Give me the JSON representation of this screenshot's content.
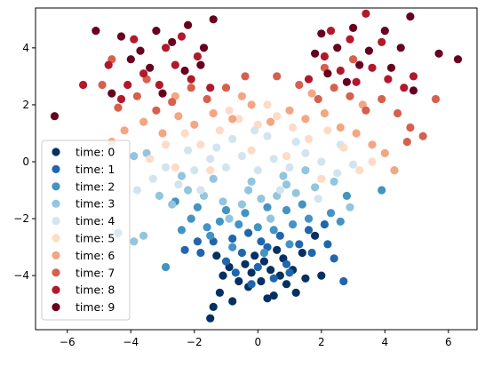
{
  "chart_data": {
    "type": "scatter",
    "title": "",
    "xlabel": "",
    "ylabel": "",
    "xlim": [
      -7.0,
      6.9
    ],
    "ylim": [
      -5.9,
      5.4
    ],
    "xticks": [
      -6,
      -4,
      -2,
      0,
      2,
      4,
      6
    ],
    "yticks": [
      -4,
      -2,
      0,
      2,
      4
    ],
    "grid": false,
    "legend_position": "lower-left",
    "series": [
      {
        "name": "time: 0",
        "color": "#053061",
        "points": [
          [
            -1.5,
            -5.5
          ],
          [
            -1.4,
            -5.1
          ],
          [
            -1.2,
            -4.6
          ],
          [
            -0.8,
            -4.9
          ],
          [
            0.3,
            -4.8
          ],
          [
            1.2,
            -4.6
          ],
          [
            0.5,
            -4.7
          ],
          [
            -0.3,
            -4.4
          ],
          [
            0.9,
            -4.3
          ],
          [
            -0.6,
            -4.2
          ],
          [
            0.1,
            -4.2
          ],
          [
            1.5,
            -4.1
          ],
          [
            -1.1,
            -4.0
          ],
          [
            0.7,
            -4.0
          ],
          [
            -0.2,
            -3.9
          ],
          [
            0.4,
            -3.8
          ],
          [
            1.1,
            -3.8
          ],
          [
            -0.9,
            -3.7
          ],
          [
            -0.4,
            -3.6
          ],
          [
            0.2,
            -3.5
          ],
          [
            0.8,
            -3.4
          ],
          [
            -1.3,
            -3.3
          ],
          [
            1.4,
            -3.2
          ],
          [
            2.0,
            -4.0
          ],
          [
            -0.1,
            -3.3
          ],
          [
            0.6,
            -3.1
          ],
          [
            1.8,
            -2.6
          ]
        ]
      },
      {
        "name": "time: 1",
        "color": "#2166ac",
        "points": [
          [
            2.7,
            -4.2
          ],
          [
            2.4,
            -3.4
          ],
          [
            -1.8,
            -3.2
          ],
          [
            -2.3,
            -3.1
          ],
          [
            -1.9,
            -2.8
          ],
          [
            1.7,
            -3.2
          ],
          [
            2.2,
            -2.9
          ],
          [
            -0.7,
            -3.9
          ],
          [
            -0.2,
            -4.3
          ],
          [
            0.5,
            -4.1
          ],
          [
            1.0,
            -3.9
          ],
          [
            -1.0,
            -3.5
          ],
          [
            0.0,
            -3.7
          ],
          [
            0.9,
            -3.6
          ],
          [
            -0.5,
            -3.2
          ],
          [
            0.3,
            -3.0
          ],
          [
            1.3,
            -2.9
          ],
          [
            -1.4,
            -2.8
          ],
          [
            -0.8,
            -2.7
          ],
          [
            0.7,
            -2.6
          ],
          [
            1.6,
            -2.4
          ],
          [
            -0.3,
            -2.5
          ],
          [
            0.1,
            -2.8
          ],
          [
            2.1,
            -2.2
          ]
        ]
      },
      {
        "name": "time: 2",
        "color": "#4393c3",
        "points": [
          [
            -4.4,
            -2.5
          ],
          [
            -2.9,
            -3.7
          ],
          [
            3.9,
            -1.0
          ],
          [
            2.6,
            -2.1
          ],
          [
            -2.4,
            -2.4
          ],
          [
            -1.6,
            -2.3
          ],
          [
            -2.1,
            -2.0
          ],
          [
            -1.2,
            -2.1
          ],
          [
            -0.6,
            -2.2
          ],
          [
            0.0,
            -2.3
          ],
          [
            0.5,
            -2.4
          ],
          [
            1.1,
            -2.2
          ],
          [
            1.6,
            -2.0
          ],
          [
            2.3,
            -1.8
          ],
          [
            -1.9,
            -1.6
          ],
          [
            -1.0,
            -1.7
          ],
          [
            -0.4,
            -1.8
          ],
          [
            0.3,
            -1.6
          ],
          [
            0.9,
            -1.7
          ],
          [
            1.4,
            -1.5
          ],
          [
            -0.8,
            -3.0
          ],
          [
            0.2,
            -3.2
          ],
          [
            1.0,
            -2.9
          ],
          [
            -1.5,
            -2.6
          ],
          [
            -2.6,
            -1.4
          ],
          [
            2.8,
            -1.2
          ]
        ]
      },
      {
        "name": "time: 3",
        "color": "#92c5de",
        "points": [
          [
            -3.9,
            -2.8
          ],
          [
            -3.6,
            -2.6
          ],
          [
            -3.9,
            0.2
          ],
          [
            -3.5,
            0.3
          ],
          [
            -3.1,
            -1.2
          ],
          [
            -2.7,
            -1.5
          ],
          [
            -2.2,
            -1.0
          ],
          [
            -1.7,
            -1.2
          ],
          [
            -1.1,
            -1.4
          ],
          [
            -0.5,
            -1.5
          ],
          [
            0.1,
            -1.3
          ],
          [
            0.6,
            -1.2
          ],
          [
            1.2,
            -1.1
          ],
          [
            1.8,
            -0.9
          ],
          [
            2.4,
            -0.7
          ],
          [
            2.9,
            -1.6
          ],
          [
            -2.4,
            -0.5
          ],
          [
            -1.4,
            -0.6
          ],
          [
            -0.2,
            -0.7
          ],
          [
            0.8,
            -0.5
          ],
          [
            1.5,
            -0.3
          ],
          [
            -0.9,
            -2.0
          ],
          [
            0.4,
            -2.0
          ],
          [
            -0.3,
            -1.0
          ],
          [
            0.9,
            -0.8
          ]
        ]
      },
      {
        "name": "time: 4",
        "color": "#d1e5f0",
        "points": [
          [
            -3.8,
            -1.0
          ],
          [
            -3.3,
            -0.6
          ],
          [
            -2.9,
            -0.2
          ],
          [
            -2.5,
            -0.8
          ],
          [
            -2.0,
            -0.3
          ],
          [
            -1.5,
            0.1
          ],
          [
            -1.0,
            -0.2
          ],
          [
            -0.5,
            0.2
          ],
          [
            0.0,
            -0.3
          ],
          [
            0.5,
            0.1
          ],
          [
            1.0,
            -0.2
          ],
          [
            1.5,
            0.3
          ],
          [
            2.0,
            0.0
          ],
          [
            2.5,
            -0.4
          ],
          [
            3.0,
            -0.1
          ],
          [
            -0.8,
            0.8
          ],
          [
            0.3,
            0.9
          ],
          [
            1.2,
            0.7
          ],
          [
            -1.8,
            -1.0
          ],
          [
            0.7,
            -1.0
          ],
          [
            1.9,
            -1.3
          ],
          [
            -0.1,
            1.1
          ],
          [
            -1.3,
            0.5
          ],
          [
            2.6,
            0.6
          ],
          [
            -2.2,
            0.4
          ]
        ]
      },
      {
        "name": "time: 5",
        "color": "#fddbc7",
        "points": [
          [
            -3.4,
            0.1
          ],
          [
            -2.9,
            0.6
          ],
          [
            -2.3,
            1.0
          ],
          [
            -1.8,
            0.6
          ],
          [
            -1.2,
            1.1
          ],
          [
            -0.6,
            1.5
          ],
          [
            0.0,
            1.3
          ],
          [
            0.6,
            1.6
          ],
          [
            1.1,
            1.2
          ],
          [
            1.6,
            0.8
          ],
          [
            2.2,
            1.1
          ],
          [
            2.7,
            0.5
          ],
          [
            3.2,
            -0.3
          ],
          [
            3.6,
            0.0
          ],
          [
            -0.2,
            0.4
          ],
          [
            0.9,
            0.2
          ],
          [
            -1.5,
            -0.3
          ],
          [
            2.0,
            -0.6
          ],
          [
            -0.9,
            1.8
          ],
          [
            0.3,
            2.0
          ],
          [
            -2.6,
            -0.2
          ]
        ]
      },
      {
        "name": "time: 6",
        "color": "#f4a582",
        "points": [
          [
            -4.6,
            0.7
          ],
          [
            -4.2,
            1.1
          ],
          [
            -3.6,
            1.4
          ],
          [
            -3.0,
            1.0
          ],
          [
            -2.5,
            1.6
          ],
          [
            -2.0,
            1.3
          ],
          [
            -1.4,
            1.7
          ],
          [
            -0.8,
            1.5
          ],
          [
            -0.2,
            2.0
          ],
          [
            0.4,
            1.4
          ],
          [
            1.0,
            1.8
          ],
          [
            1.5,
            1.5
          ],
          [
            2.1,
            1.7
          ],
          [
            2.6,
            1.2
          ],
          [
            3.1,
            1.0
          ],
          [
            3.6,
            0.6
          ],
          [
            4.0,
            0.3
          ],
          [
            4.3,
            -0.3
          ],
          [
            -2.6,
            2.3
          ],
          [
            1.7,
            2.4
          ],
          [
            -0.5,
            2.3
          ],
          [
            3.3,
            2.0
          ]
        ]
      },
      {
        "name": "time: 7",
        "color": "#d6604d",
        "points": [
          [
            -4.9,
            2.7
          ],
          [
            -4.4,
            1.9
          ],
          [
            -3.8,
            2.3
          ],
          [
            -3.2,
            1.8
          ],
          [
            -2.7,
            2.1
          ],
          [
            -2.1,
            2.6
          ],
          [
            -1.6,
            2.2
          ],
          [
            -1.0,
            2.6
          ],
          [
            1.3,
            2.7
          ],
          [
            1.9,
            2.2
          ],
          [
            2.4,
            2.6
          ],
          [
            2.9,
            2.3
          ],
          [
            3.4,
            1.8
          ],
          [
            3.9,
            2.2
          ],
          [
            4.4,
            1.7
          ],
          [
            4.8,
            1.2
          ],
          [
            5.2,
            0.9
          ],
          [
            5.6,
            2.2
          ],
          [
            -4.6,
            3.6
          ],
          [
            -3.5,
            2.9
          ],
          [
            2.1,
            3.3
          ],
          [
            3.0,
            3.6
          ],
          [
            0.6,
            3.0
          ],
          [
            -0.4,
            3.0
          ],
          [
            4.7,
            0.7
          ]
        ]
      },
      {
        "name": "time: 8",
        "color": "#b2182b",
        "points": [
          [
            -5.5,
            2.7
          ],
          [
            -4.7,
            3.4
          ],
          [
            -4.1,
            2.7
          ],
          [
            -3.6,
            3.1
          ],
          [
            -3.1,
            2.7
          ],
          [
            -2.6,
            3.4
          ],
          [
            -2.1,
            2.9
          ],
          [
            -1.5,
            2.6
          ],
          [
            -3.9,
            4.3
          ],
          [
            -2.9,
            4.0
          ],
          [
            -1.9,
            3.7
          ],
          [
            -2.4,
            4.4
          ],
          [
            1.6,
            2.9
          ],
          [
            2.1,
            3.7
          ],
          [
            2.6,
            3.2
          ],
          [
            3.1,
            2.8
          ],
          [
            3.6,
            3.3
          ],
          [
            4.1,
            2.9
          ],
          [
            4.6,
            2.6
          ],
          [
            2.9,
            4.3
          ],
          [
            3.9,
            4.2
          ],
          [
            2.3,
            4.6
          ],
          [
            3.4,
            5.2
          ],
          [
            -4.3,
            2.2
          ],
          [
            4.9,
            3.0
          ]
        ]
      },
      {
        "name": "time: 9",
        "color": "#67001f",
        "points": [
          [
            -6.4,
            1.6
          ],
          [
            -5.1,
            4.6
          ],
          [
            -4.3,
            4.4
          ],
          [
            -3.7,
            3.9
          ],
          [
            -3.2,
            4.6
          ],
          [
            -2.7,
            4.2
          ],
          [
            -2.2,
            4.8
          ],
          [
            -1.7,
            4.0
          ],
          [
            -1.4,
            5.0
          ],
          [
            -4.6,
            2.4
          ],
          [
            -3.4,
            3.3
          ],
          [
            -2.3,
            3.2
          ],
          [
            -1.8,
            3.4
          ],
          [
            -4.0,
            3.6
          ],
          [
            2.0,
            4.5
          ],
          [
            2.5,
            4.0
          ],
          [
            3.0,
            4.7
          ],
          [
            3.5,
            3.9
          ],
          [
            4.0,
            4.6
          ],
          [
            4.5,
            4.0
          ],
          [
            4.8,
            5.1
          ],
          [
            5.7,
            3.8
          ],
          [
            6.3,
            3.6
          ],
          [
            2.2,
            3.1
          ],
          [
            3.2,
            3.4
          ],
          [
            4.2,
            3.3
          ],
          [
            4.9,
            2.5
          ],
          [
            2.8,
            2.8
          ],
          [
            1.8,
            3.8
          ],
          [
            -3.0,
            2.4
          ]
        ]
      }
    ]
  }
}
